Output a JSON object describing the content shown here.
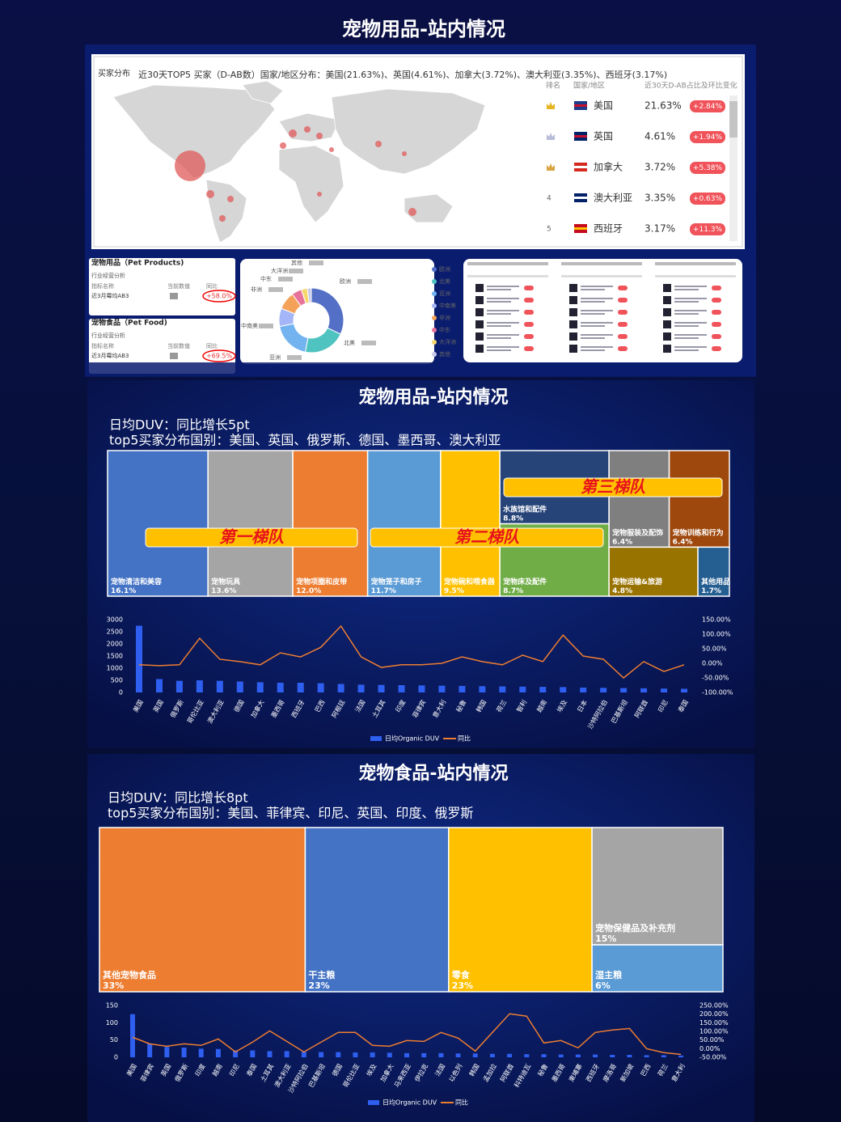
{
  "overview": {
    "title": "宠物用品-站内情况",
    "map": {
      "label": "买家分布",
      "caption": "近30天TOP5 买家（D-AB数）国家/地区分布：美国(21.63%)、英国(4.61%)、加拿大(3.72%)、澳大利亚(3.35%)、西班牙(3.17%)",
      "headers": [
        "排名",
        "国家/地区",
        "近30天D-AB占比及环比变化"
      ],
      "rows": [
        {
          "rank": null,
          "country": "美国",
          "share": "21.63%",
          "change": "+2.84%"
        },
        {
          "rank": null,
          "country": "英国",
          "share": "4.61%",
          "change": "+1.94%"
        },
        {
          "rank": null,
          "country": "加拿大",
          "share": "3.72%",
          "change": "+5.38%"
        },
        {
          "rank": "4",
          "country": "澳大利亚",
          "share": "3.35%",
          "change": "+0.63%"
        },
        {
          "rank": "5",
          "country": "西班牙",
          "share": "3.17%",
          "change": "+11.3%"
        }
      ]
    },
    "cards": [
      {
        "title": "宠物用品（Pet Products)",
        "subtitle": "行业经营分析",
        "headers": [
          "指标名称",
          "当前数值",
          "同比"
        ],
        "metric": "近3月霉均AB3",
        "yoy": "+58.0%"
      },
      {
        "title": "宠物食品（Pet Food)",
        "subtitle": "行业经营分析",
        "headers": [
          "指标名称",
          "当前数值",
          "同比"
        ],
        "metric": "近3月霉均AB3",
        "yoy": "+69.5%"
      }
    ]
  },
  "chart_data": [
    {
      "type": "pie",
      "categories": [
        "欧洲",
        "北美",
        "亚洲",
        "中南美",
        "非洲",
        "中东",
        "大洋洲",
        "其他"
      ],
      "values": [
        32,
        21,
        19,
        9,
        9,
        5,
        3,
        2
      ],
      "colors": [
        "#5470c6",
        "#4fc3c0",
        "#73b4f0",
        "#a4b6f7",
        "#f4a259",
        "#e8739a",
        "#f5d76e",
        "#c9c9e8"
      ],
      "legend": "right"
    },
    {
      "type": "treemap",
      "title": "宠物用品-站内情况",
      "subtitle": [
        "日均DUV：同比增长5pt",
        "top5买家分布国别：美国、英国、俄罗斯、德国、墨西哥、澳大利亚"
      ],
      "categories": [
        "宠物清洁和美容",
        "宠物玩具",
        "宠物项圈和皮带",
        "宠物笼子和房子",
        "宠物碗和喂食器",
        "水族馆和配件",
        "宠物床及配件",
        "宠物服装及配饰",
        "宠物训练和行为",
        "宠物运输&旅游",
        "其他用品"
      ],
      "values": [
        16.1,
        13.6,
        12.0,
        11.7,
        9.5,
        8.8,
        8.7,
        6.4,
        6.4,
        4.8,
        1.7
      ],
      "value_labels": [
        "16.1%",
        "13.6%",
        "12.0%",
        "11.7%",
        "9.5%",
        "8.8%",
        "8.7%",
        "6.4%",
        "6.4%",
        "4.8%",
        "1.7%"
      ],
      "colors": [
        "#4472c4",
        "#a5a5a5",
        "#ed7d31",
        "#5b9bd5",
        "#ffc000",
        "#264478",
        "#70ad47",
        "#7f7f7f",
        "#9e480e",
        "#997300",
        "#255e91"
      ],
      "annotations": [
        "第一梯队",
        "第二梯队",
        "第三梯队"
      ]
    },
    {
      "type": "combo",
      "categories": [
        "美国",
        "英国",
        "俄罗斯",
        "哥伦比亚",
        "澳大利亚",
        "德国",
        "加拿大",
        "墨西哥",
        "西班牙",
        "巴西",
        "阿根廷",
        "法国",
        "土耳其",
        "印度",
        "菲律宾",
        "意大利",
        "秘鲁",
        "韩国",
        "荷兰",
        "智利",
        "越南",
        "埃及",
        "日本",
        "沙特阿拉伯",
        "巴基斯坦",
        "阿联酋",
        "印尼",
        "泰国"
      ],
      "series": [
        {
          "name": "日均Organic DUV",
          "type": "bar",
          "color": "#2f5ff0",
          "values": [
            2750,
            550,
            480,
            500,
            480,
            450,
            420,
            400,
            400,
            380,
            350,
            320,
            310,
            300,
            290,
            280,
            270,
            260,
            250,
            240,
            230,
            220,
            200,
            190,
            180,
            170,
            160,
            150
          ]
        },
        {
          "name": "同比",
          "type": "line",
          "axis": "y2",
          "color": "#ed7d31",
          "values": [
            -5,
            -8,
            -5,
            86,
            14,
            6,
            -5,
            36,
            22,
            55,
            128,
            22,
            -14,
            -5,
            -5,
            0,
            22,
            6,
            -5,
            28,
            6,
            97,
            25,
            14,
            -50,
            6,
            -28,
            -5
          ]
        }
      ],
      "ylim": [
        0,
        3000
      ],
      "yticks": [
        0,
        500,
        1000,
        1500,
        2000,
        2500,
        3000
      ],
      "y2lim": [
        -100,
        150
      ],
      "y2ticks": [
        {
          "value": -100,
          "label": "-100.00%"
        },
        {
          "value": -50,
          "label": "-50.00%"
        },
        {
          "value": 0,
          "label": "0.00%"
        },
        {
          "value": 50,
          "label": "50.00%"
        },
        {
          "value": 100,
          "label": "100.00%"
        },
        {
          "value": 150,
          "label": "150.00%"
        }
      ],
      "legend": "bottom"
    },
    {
      "type": "treemap",
      "title": "宠物食品-站内情况",
      "subtitle": [
        "日均DUV：同比增长8pt",
        "top5买家分布国别：美国、菲律宾、印尼、英国、印度、俄罗斯"
      ],
      "categories": [
        "其他宠物食品",
        "干主粮",
        "零食",
        "宠物保健品及补充剂",
        "湿主粮"
      ],
      "values": [
        33,
        23,
        23,
        15,
        6
      ],
      "value_labels": [
        "33%",
        "23%",
        "23%",
        "15%",
        "6%"
      ],
      "colors": [
        "#ed7d31",
        "#4472c4",
        "#ffc000",
        "#a5a5a5",
        "#5b9bd5"
      ]
    },
    {
      "type": "combo",
      "categories": [
        "美国",
        "菲律宾",
        "英国",
        "俄罗斯",
        "印度",
        "越南",
        "印尼",
        "泰国",
        "土耳其",
        "澳大利亚",
        "沙特阿拉伯",
        "巴基斯坦",
        "德国",
        "哥伦比亚",
        "埃及",
        "加拿大",
        "马来西亚",
        "伊拉克",
        "法国",
        "以色列",
        "韩国",
        "孟加拉",
        "阿联酋",
        "科特迪瓦",
        "秘鲁",
        "墨西哥",
        "柬埔寨",
        "西班牙",
        "摩洛哥",
        "新加坡",
        "巴西",
        "荷兰",
        "意大利"
      ],
      "series": [
        {
          "name": "日均Organic DUV",
          "type": "bar",
          "color": "#2f5ff0",
          "values": [
            125,
            40,
            30,
            28,
            25,
            24,
            20,
            20,
            18,
            18,
            16,
            15,
            15,
            14,
            14,
            13,
            12,
            12,
            12,
            11,
            11,
            10,
            10,
            9,
            9,
            8,
            8,
            8,
            7,
            7,
            6,
            6,
            5
          ]
        },
        {
          "name": "同比",
          "type": "line",
          "axis": "y2",
          "color": "#ed7d31",
          "values": [
            66,
            28,
            14,
            28,
            19,
            56,
            -19,
            38,
            103,
            42,
            -19,
            38,
            94,
            94,
            19,
            14,
            47,
            42,
            94,
            61,
            -14,
            94,
            202,
            188,
            33,
            47,
            5,
            94,
            108,
            117,
            0,
            -23,
            -33
          ]
        }
      ],
      "ylim": [
        0,
        150
      ],
      "yticks": [
        0,
        50,
        100,
        150
      ],
      "y2lim": [
        -50,
        250
      ],
      "y2ticks": [
        {
          "value": -50,
          "label": "-50.00%"
        },
        {
          "value": 0,
          "label": "0.00%"
        },
        {
          "value": 50,
          "label": "50.00%"
        },
        {
          "value": 100,
          "label": "100.00%"
        },
        {
          "value": 150,
          "label": "150.00%"
        },
        {
          "value": 200,
          "label": "200.00%"
        },
        {
          "value": 250,
          "label": "250.00%"
        }
      ],
      "legend": "bottom"
    }
  ]
}
